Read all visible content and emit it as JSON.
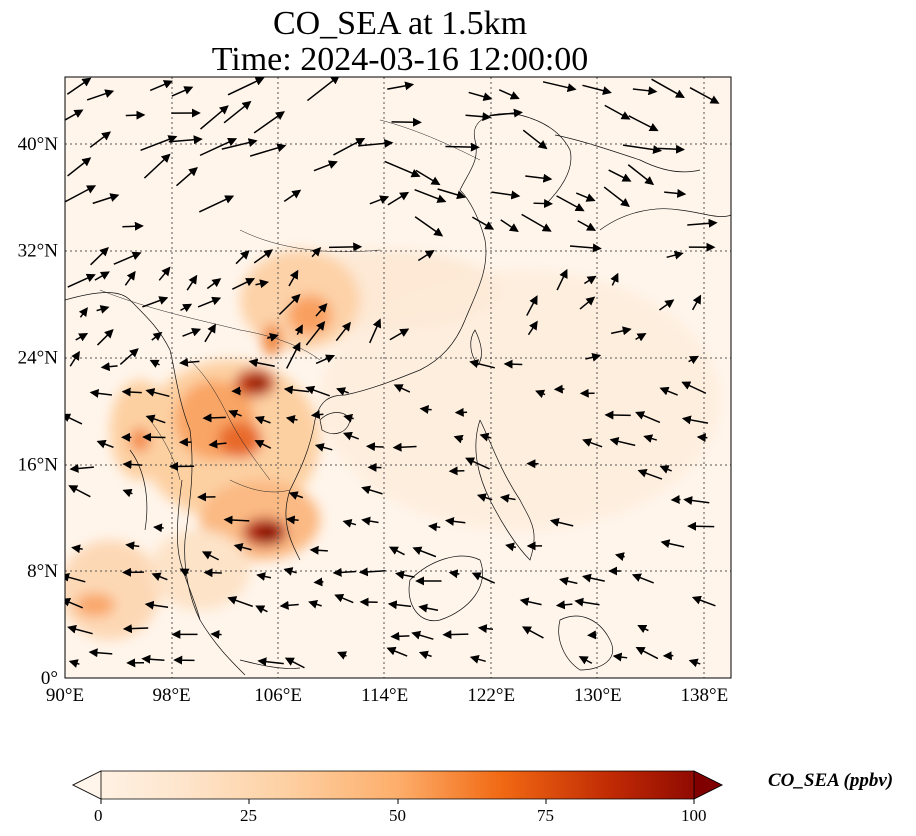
{
  "title": {
    "line1": "CO_SEA at 1.5km",
    "line2": "Time: 2024-03-16 12:00:00"
  },
  "map": {
    "lon_range": [
      90,
      140
    ],
    "lat_range": [
      0,
      45
    ],
    "lon_ticks": [
      "90°E",
      "98°E",
      "106°E",
      "114°E",
      "122°E",
      "130°E",
      "138°E"
    ],
    "lat_ticks": [
      "0°",
      "8°N",
      "16°N",
      "24°N",
      "32°N",
      "40°N"
    ],
    "gridlines": true,
    "background_color": "#fff5eb"
  },
  "colorbar": {
    "label": "CO_SEA (ppbv)",
    "ticks": [
      "0",
      "25",
      "50",
      "75",
      "100"
    ],
    "range": [
      0,
      100
    ],
    "colormap": [
      "#fff5eb",
      "#fdd9b4",
      "#fdab67",
      "#f67824",
      "#d94801",
      "#a63603",
      "#7f2704"
    ],
    "extend": "both"
  }
}
